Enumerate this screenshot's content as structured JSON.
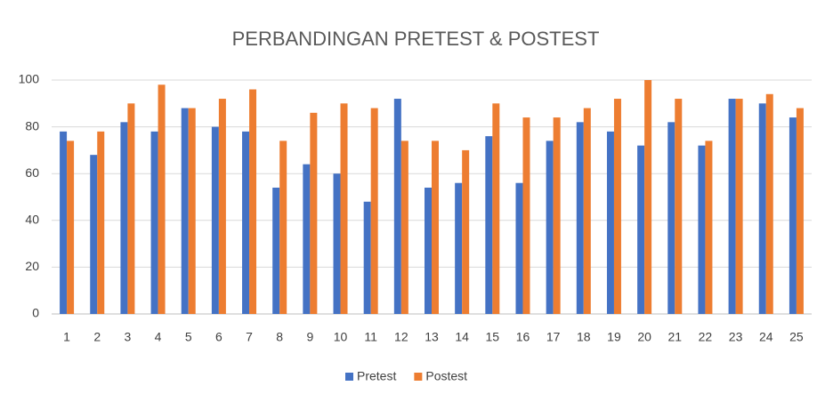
{
  "chart_data": {
    "type": "bar",
    "title": "PERBANDINGAN PRETEST & POSTEST",
    "categories": [
      "1",
      "2",
      "3",
      "4",
      "5",
      "6",
      "7",
      "8",
      "9",
      "10",
      "11",
      "12",
      "13",
      "14",
      "15",
      "16",
      "17",
      "18",
      "19",
      "20",
      "21",
      "22",
      "23",
      "24",
      "25"
    ],
    "series": [
      {
        "name": "Pretest",
        "color": "#4472c4",
        "values": [
          78,
          68,
          82,
          78,
          88,
          80,
          78,
          54,
          64,
          60,
          48,
          92,
          54,
          56,
          76,
          56,
          74,
          82,
          78,
          72,
          82,
          72,
          92,
          90,
          84
        ]
      },
      {
        "name": "Postest",
        "color": "#ed7d31",
        "values": [
          74,
          78,
          90,
          98,
          88,
          92,
          96,
          74,
          86,
          90,
          88,
          74,
          74,
          70,
          90,
          84,
          84,
          88,
          92,
          100,
          92,
          74,
          92,
          94,
          88
        ]
      }
    ],
    "ylim": [
      0,
      100
    ],
    "yticks": [
      0,
      20,
      40,
      60,
      80,
      100
    ],
    "grid": true,
    "legend": "bottom"
  }
}
